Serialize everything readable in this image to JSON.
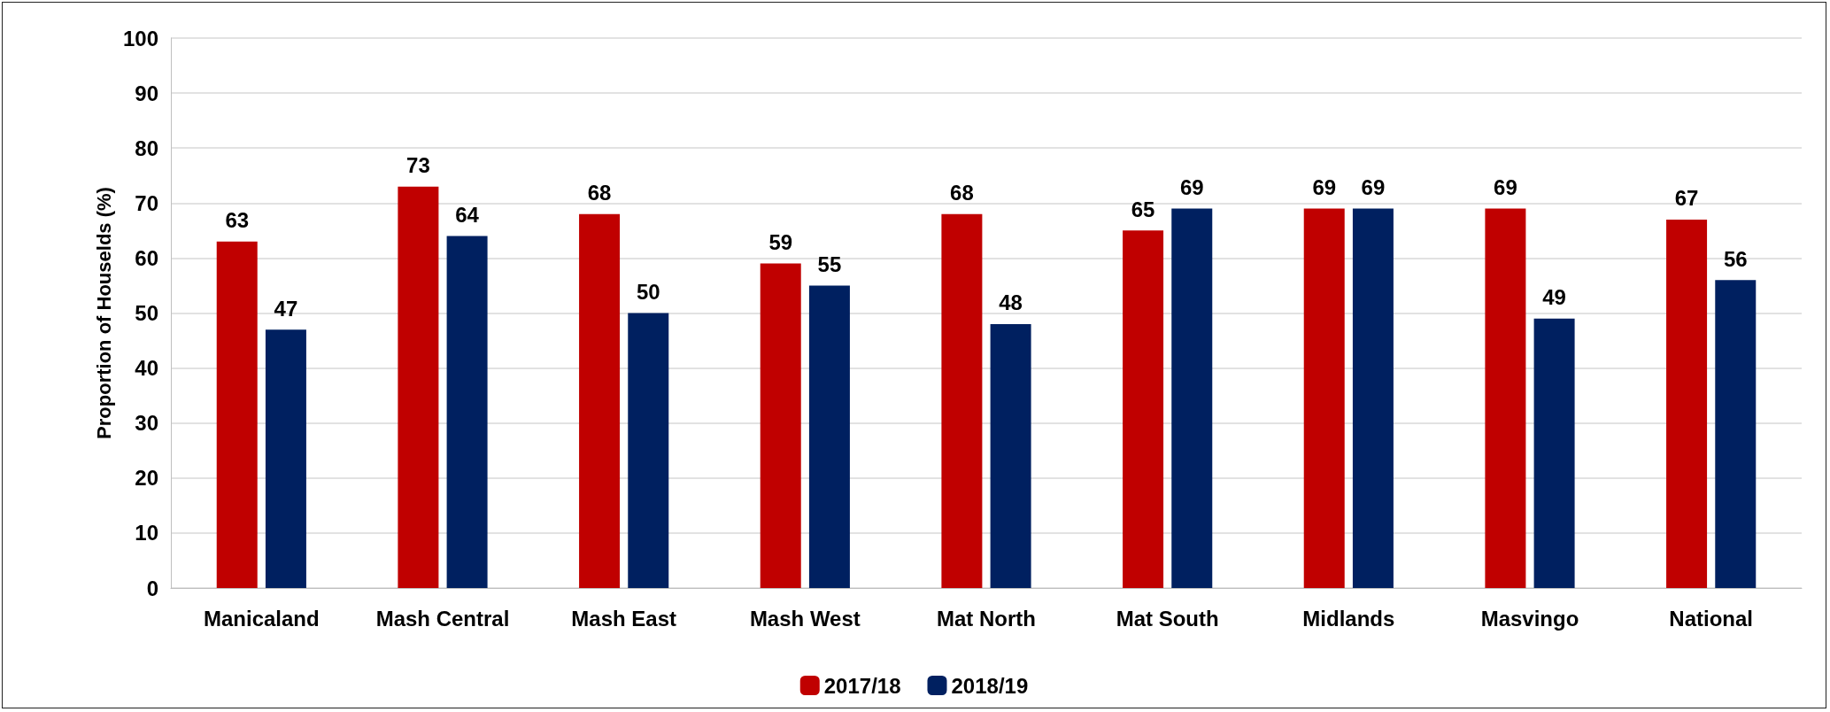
{
  "chart_data": {
    "type": "bar",
    "ylabel": "Proportion of Houselds (%)",
    "categories": [
      "Manicaland",
      "Mash Central",
      "Mash East",
      "Mash West",
      "Mat North",
      "Mat South",
      "Midlands",
      "Masvingo",
      "National"
    ],
    "series": [
      {
        "name": "2017/18",
        "color": "#c00000",
        "values": [
          63,
          73,
          68,
          59,
          68,
          65,
          69,
          69,
          67
        ]
      },
      {
        "name": "2018/19",
        "color": "#002060",
        "values": [
          47,
          64,
          50,
          55,
          48,
          69,
          69,
          49,
          56
        ]
      }
    ],
    "ylim": [
      0,
      100
    ],
    "yticks": [
      0,
      10,
      20,
      30,
      40,
      50,
      60,
      70,
      80,
      90,
      100
    ],
    "grid": "y",
    "legend": "bottom",
    "data_labels": true
  }
}
